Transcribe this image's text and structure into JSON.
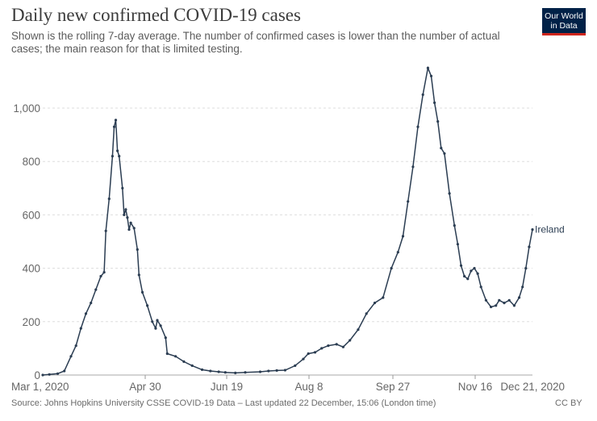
{
  "header": {
    "title": "Daily new confirmed COVID-19 cases",
    "subtitle": "Shown is the rolling 7-day average. The number of confirmed cases is lower than the number of actual cases; the main reason for that is limited testing.",
    "logo_line1": "Our World",
    "logo_line2": "in Data"
  },
  "footer": {
    "source": "Source: Johns Hopkins University CSSE COVID-19 Data – Last updated 22 December, 15:06 (London time)",
    "license": "CC BY"
  },
  "colors": {
    "line": "#2b3d52",
    "grid": "#dddddd",
    "logo_bg": "#002147",
    "logo_accent": "#ce261e"
  },
  "chart_data": {
    "type": "line",
    "title": "Daily new confirmed COVID-19 cases",
    "x_ticks": [
      "Mar 1, 2020",
      "Apr 30",
      "Jun 19",
      "Aug 8",
      "Sep 27",
      "Nov 16",
      "Dec 21, 2020"
    ],
    "y_ticks": [
      0,
      200,
      400,
      600,
      800,
      1000
    ],
    "y_tick_labels": [
      "0",
      "200",
      "400",
      "600",
      "800",
      "1,000"
    ],
    "ylim": [
      0,
      1150
    ],
    "xlim": [
      "2020-03-01",
      "2020-12-21"
    ],
    "grid": "horizontal dashed",
    "series": [
      {
        "name": "Ireland",
        "points": [
          [
            "2020-03-01",
            0
          ],
          [
            "2020-03-05",
            2
          ],
          [
            "2020-03-10",
            5
          ],
          [
            "2020-03-14",
            15
          ],
          [
            "2020-03-18",
            70
          ],
          [
            "2020-03-21",
            110
          ],
          [
            "2020-03-24",
            175
          ],
          [
            "2020-03-27",
            230
          ],
          [
            "2020-03-30",
            270
          ],
          [
            "2020-04-02",
            320
          ],
          [
            "2020-04-05",
            370
          ],
          [
            "2020-04-07",
            385
          ],
          [
            "2020-04-08",
            540
          ],
          [
            "2020-04-10",
            660
          ],
          [
            "2020-04-12",
            820
          ],
          [
            "2020-04-13",
            930
          ],
          [
            "2020-04-14",
            955
          ],
          [
            "2020-04-15",
            840
          ],
          [
            "2020-04-16",
            820
          ],
          [
            "2020-04-18",
            700
          ],
          [
            "2020-04-19",
            600
          ],
          [
            "2020-04-20",
            620
          ],
          [
            "2020-04-21",
            590
          ],
          [
            "2020-04-22",
            545
          ],
          [
            "2020-04-23",
            570
          ],
          [
            "2020-04-25",
            550
          ],
          [
            "2020-04-27",
            470
          ],
          [
            "2020-04-28",
            375
          ],
          [
            "2020-04-30",
            310
          ],
          [
            "2020-05-03",
            260
          ],
          [
            "2020-05-06",
            200
          ],
          [
            "2020-05-08",
            175
          ],
          [
            "2020-05-09",
            205
          ],
          [
            "2020-05-11",
            185
          ],
          [
            "2020-05-14",
            140
          ],
          [
            "2020-05-15",
            80
          ],
          [
            "2020-05-20",
            70
          ],
          [
            "2020-05-25",
            50
          ],
          [
            "2020-05-30",
            35
          ],
          [
            "2020-06-05",
            20
          ],
          [
            "2020-06-10",
            15
          ],
          [
            "2020-06-15",
            12
          ],
          [
            "2020-06-19",
            10
          ],
          [
            "2020-06-25",
            8
          ],
          [
            "2020-07-01",
            10
          ],
          [
            "2020-07-10",
            12
          ],
          [
            "2020-07-15",
            15
          ],
          [
            "2020-07-20",
            17
          ],
          [
            "2020-07-25",
            18
          ],
          [
            "2020-07-31",
            35
          ],
          [
            "2020-08-05",
            60
          ],
          [
            "2020-08-08",
            80
          ],
          [
            "2020-08-12",
            85
          ],
          [
            "2020-08-16",
            100
          ],
          [
            "2020-08-20",
            110
          ],
          [
            "2020-08-25",
            115
          ],
          [
            "2020-08-29",
            105
          ],
          [
            "2020-09-02",
            130
          ],
          [
            "2020-09-07",
            170
          ],
          [
            "2020-09-12",
            230
          ],
          [
            "2020-09-17",
            270
          ],
          [
            "2020-09-22",
            290
          ],
          [
            "2020-09-27",
            400
          ],
          [
            "2020-10-01",
            460
          ],
          [
            "2020-10-04",
            520
          ],
          [
            "2020-10-07",
            650
          ],
          [
            "2020-10-10",
            780
          ],
          [
            "2020-10-13",
            930
          ],
          [
            "2020-10-16",
            1050
          ],
          [
            "2020-10-19",
            1150
          ],
          [
            "2020-10-21",
            1120
          ],
          [
            "2020-10-23",
            1020
          ],
          [
            "2020-10-25",
            950
          ],
          [
            "2020-10-27",
            850
          ],
          [
            "2020-10-29",
            830
          ],
          [
            "2020-11-01",
            680
          ],
          [
            "2020-11-04",
            560
          ],
          [
            "2020-11-06",
            490
          ],
          [
            "2020-11-08",
            410
          ],
          [
            "2020-11-10",
            370
          ],
          [
            "2020-11-12",
            360
          ],
          [
            "2020-11-14",
            390
          ],
          [
            "2020-11-16",
            400
          ],
          [
            "2020-11-18",
            380
          ],
          [
            "2020-11-20",
            330
          ],
          [
            "2020-11-23",
            280
          ],
          [
            "2020-11-26",
            255
          ],
          [
            "2020-11-29",
            260
          ],
          [
            "2020-12-01",
            280
          ],
          [
            "2020-12-04",
            270
          ],
          [
            "2020-12-07",
            280
          ],
          [
            "2020-12-10",
            260
          ],
          [
            "2020-12-13",
            290
          ],
          [
            "2020-12-15",
            330
          ],
          [
            "2020-12-17",
            400
          ],
          [
            "2020-12-19",
            480
          ],
          [
            "2020-12-21",
            545
          ]
        ]
      }
    ]
  }
}
